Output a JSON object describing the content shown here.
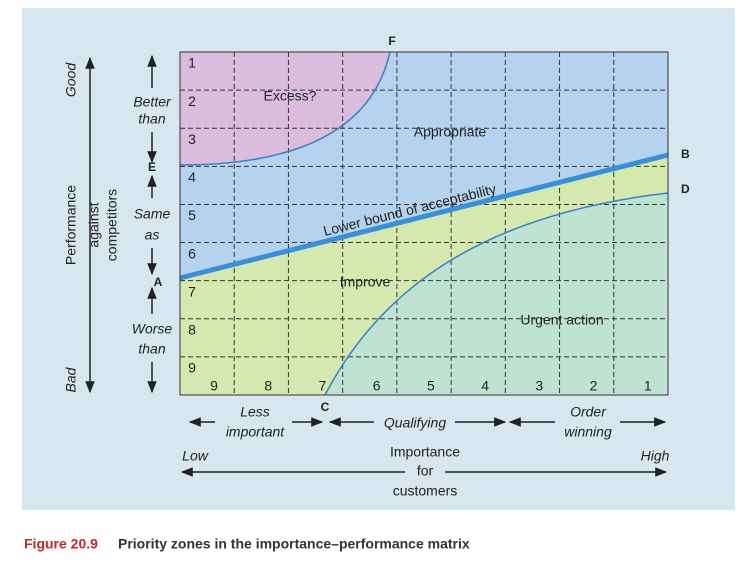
{
  "diagram": {
    "row_numbers": [
      "1",
      "2",
      "3",
      "4",
      "5",
      "6",
      "7",
      "8",
      "9"
    ],
    "col_numbers": [
      "9",
      "8",
      "7",
      "6",
      "5",
      "4",
      "3",
      "2",
      "1"
    ],
    "zones": {
      "excess": "Excess?",
      "appropriate": "Appropriate",
      "boundary": "Lower bound of acceptability",
      "improve": "Improve",
      "urgent": "Urgent action"
    },
    "points": {
      "a": "A",
      "b": "B",
      "c": "C",
      "d": "D",
      "e": "E",
      "f": "F"
    },
    "y_axis": {
      "good": "Good",
      "bad": "Bad",
      "title": [
        "Performance",
        "against",
        "competitors"
      ],
      "better": [
        "Better",
        "than"
      ],
      "same": [
        "Same",
        "as"
      ],
      "worse": [
        "Worse",
        "than"
      ]
    },
    "x_axis": {
      "less": [
        "Less",
        "important"
      ],
      "qualifying": "Qualifying",
      "order": [
        "Order",
        "winning"
      ],
      "low": "Low",
      "high": "High",
      "title": [
        "Importance",
        "for",
        "customers"
      ]
    },
    "caption": {
      "number": "Figure 20.9",
      "text": "Priority zones in the importance–performance matrix"
    }
  }
}
